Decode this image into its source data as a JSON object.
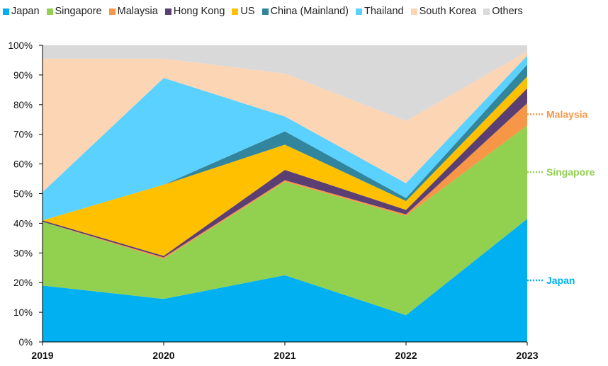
{
  "chart_data": {
    "type": "area",
    "stacked": true,
    "x": [
      "2019",
      "2020",
      "2021",
      "2022",
      "2023"
    ],
    "yticks": [
      "0%",
      "10%",
      "20%",
      "30%",
      "40%",
      "50%",
      "60%",
      "70%",
      "80%",
      "90%",
      "100%"
    ],
    "ylim": [
      0,
      100
    ],
    "legend_position": "top",
    "series": [
      {
        "name": "Japan",
        "color": "#00B0F0",
        "values": [
          19,
          14.5,
          22.5,
          9,
          41.5
        ]
      },
      {
        "name": "Singapore",
        "color": "#92D050",
        "values": [
          21.5,
          13.5,
          31.5,
          33.5,
          31.5
        ]
      },
      {
        "name": "Malaysia",
        "color": "#F79646",
        "values": [
          0,
          0.5,
          0.5,
          0.5,
          7.5
        ]
      },
      {
        "name": "Hong Kong",
        "color": "#5B3F73",
        "values": [
          0.5,
          0.5,
          3.5,
          1.5,
          5
        ]
      },
      {
        "name": "US",
        "color": "#FFC000",
        "values": [
          0,
          24,
          8.5,
          3,
          4
        ]
      },
      {
        "name": "China (Mainland)",
        "color": "#31859C",
        "values": [
          0,
          0,
          4.5,
          1,
          4
        ]
      },
      {
        "name": "Thailand",
        "color": "#5BD1FF",
        "values": [
          9.5,
          36,
          5,
          5,
          3
        ]
      },
      {
        "name": "South Korea",
        "color": "#FCD5B5",
        "values": [
          45,
          6.5,
          14.5,
          21,
          1.5
        ]
      },
      {
        "name": "Others",
        "color": "#D9D9D9",
        "values": [
          4.5,
          4.5,
          9.5,
          25.5,
          2
        ]
      }
    ],
    "annotations": [
      {
        "label": "Malaysia",
        "series": "Malaysia",
        "color": "#F79646"
      },
      {
        "label": "Singapore",
        "series": "Singapore",
        "color": "#92D050"
      },
      {
        "label": "Japan",
        "series": "Japan",
        "color": "#00B0F0"
      }
    ]
  }
}
